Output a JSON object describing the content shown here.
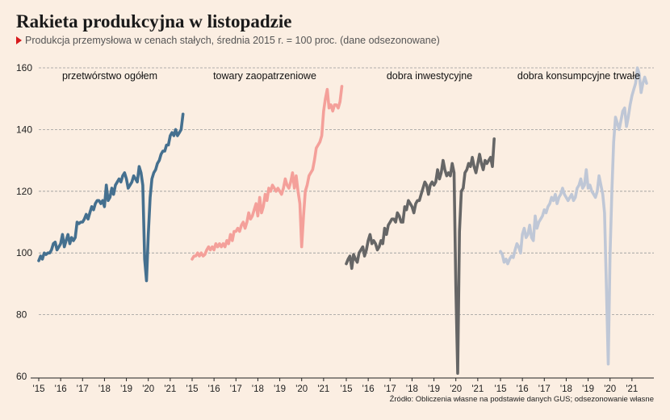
{
  "header": {
    "title": "Rakieta produkcyjna w listopadzie",
    "subtitle": "Produkcja przemysłowa w cenach stałych, średnia 2015 r. = 100 proc. (dane odsezonowane)"
  },
  "footer": {
    "source": "Źródło: Obliczenia własne na podstawie danych GUS; odsezonowanie własne"
  },
  "chart_data": {
    "type": "line",
    "title": "Rakieta produkcyjna w listopadzie",
    "ylim": [
      60,
      160
    ],
    "yticks": [
      60,
      80,
      100,
      120,
      140,
      160
    ],
    "ytick_labels": [
      "60",
      "80",
      "100",
      "120",
      "140",
      "160"
    ],
    "xtick_labels": [
      "'15",
      "'16",
      "'17",
      "'18",
      "'19",
      "'20",
      "'21"
    ],
    "grid": true,
    "series": [
      {
        "name": "przetwórstwo ogółem",
        "color": "#45708f",
        "values": [
          97.5,
          99,
          98,
          100,
          99.5,
          100,
          100,
          101,
          103,
          103.5,
          101,
          102,
          103,
          106,
          102,
          104,
          106,
          103,
          105,
          104,
          105,
          110,
          109.5,
          110,
          110,
          111,
          112.5,
          111,
          113,
          115,
          114,
          116,
          117,
          117,
          116,
          117,
          115,
          122,
          117,
          118,
          121,
          119,
          122,
          123,
          124,
          123,
          125,
          126,
          124,
          121,
          122,
          123,
          125,
          124,
          123,
          128,
          126,
          122,
          98,
          91,
          106,
          118,
          124,
          126,
          127,
          129,
          130,
          132,
          133,
          133,
          135,
          135,
          138,
          139,
          138,
          140,
          138,
          139,
          140,
          145
        ]
      },
      {
        "name": "towary zaopatrzeniowe",
        "color": "#f4a09a",
        "values": [
          98,
          99,
          99,
          100,
          99,
          100,
          99,
          99.5,
          101,
          102,
          101,
          102,
          101,
          103,
          102,
          103,
          102,
          103,
          102,
          104,
          103,
          106,
          104,
          107,
          107,
          108,
          107,
          109,
          110,
          108,
          110,
          113,
          111,
          112,
          114,
          116,
          112,
          118,
          113,
          115,
          119,
          117,
          121,
          120,
          122,
          121,
          120,
          121,
          120,
          119,
          121,
          124,
          122,
          121,
          123,
          126,
          121,
          125,
          120,
          116,
          102,
          112,
          120,
          122,
          125,
          126,
          127,
          130,
          134,
          135,
          136,
          138,
          146,
          150,
          153,
          147,
          148,
          146,
          148,
          148,
          147,
          149,
          154
        ]
      },
      {
        "name": "dobra inwestycyjne",
        "color": "#666666",
        "values": [
          96.5,
          98,
          99,
          95,
          99.5,
          98,
          97,
          100,
          101,
          102,
          99,
          101,
          104,
          106,
          103,
          104,
          103,
          101,
          102,
          104,
          103,
          108,
          106,
          109,
          110,
          111,
          111,
          110,
          113,
          112,
          110,
          110,
          115,
          114,
          117,
          116,
          115,
          113,
          116,
          117,
          117,
          119,
          121,
          123,
          122,
          119,
          122,
          123,
          122,
          123,
          127,
          124,
          126,
          130,
          127,
          125,
          126,
          125,
          129,
          126,
          89,
          61,
          107,
          120,
          121,
          126,
          127,
          129,
          128,
          131,
          128,
          126,
          129,
          132,
          129,
          127,
          130,
          129,
          130,
          131,
          128,
          137
        ]
      },
      {
        "name": "dobra konsumpcyjne trwałe",
        "color": "#bfc7d6",
        "values": [
          100.5,
          99.5,
          97,
          98,
          96.5,
          98,
          99,
          98.5,
          101,
          103,
          102,
          100,
          106,
          108,
          105,
          106,
          109,
          105,
          104,
          112,
          108,
          110,
          111,
          112,
          114,
          113,
          115,
          116,
          118,
          117,
          119,
          116,
          118,
          119,
          121,
          119,
          118,
          117,
          118,
          119,
          117,
          118,
          121,
          122,
          124,
          121,
          122,
          127,
          121,
          122,
          120,
          119,
          118,
          120,
          125,
          122,
          119,
          113,
          89,
          64,
          99,
          120,
          136,
          144,
          142,
          140,
          143,
          146,
          147,
          141,
          144,
          148,
          151,
          153,
          155,
          160,
          158,
          152,
          155,
          157,
          155
        ]
      }
    ]
  }
}
